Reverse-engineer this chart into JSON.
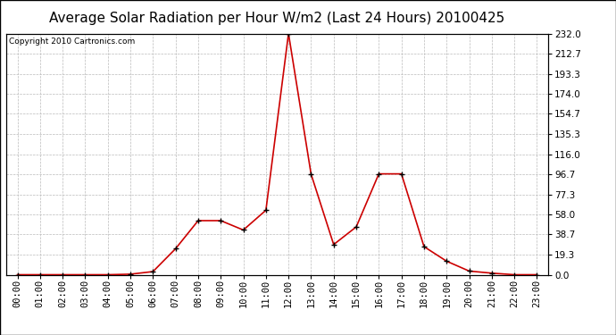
{
  "title": "Average Solar Radiation per Hour W/m2 (Last 24 Hours) 20100425",
  "copyright": "Copyright 2010 Cartronics.com",
  "hours": [
    "00:00",
    "01:00",
    "02:00",
    "03:00",
    "04:00",
    "05:00",
    "06:00",
    "07:00",
    "08:00",
    "09:00",
    "10:00",
    "11:00",
    "12:00",
    "13:00",
    "14:00",
    "15:00",
    "16:00",
    "17:00",
    "18:00",
    "19:00",
    "20:00",
    "21:00",
    "22:00",
    "23:00"
  ],
  "values": [
    0.0,
    0.0,
    0.0,
    0.0,
    0.0,
    0.5,
    3.0,
    25.0,
    52.0,
    52.0,
    43.0,
    62.0,
    232.0,
    96.7,
    29.0,
    46.0,
    97.0,
    97.0,
    27.0,
    13.0,
    3.5,
    1.5,
    0.0,
    0.0
  ],
  "line_color": "#cc0000",
  "marker_color": "#000000",
  "bg_color": "#ffffff",
  "plot_bg_color": "#ffffff",
  "grid_color": "#bbbbbb",
  "border_color": "#000000",
  "title_fontsize": 11,
  "copyright_fontsize": 6.5,
  "tick_fontsize": 7.5,
  "ymin": 0.0,
  "ymax": 232.0,
  "yticks": [
    0.0,
    19.3,
    38.7,
    58.0,
    77.3,
    96.7,
    116.0,
    135.3,
    154.7,
    174.0,
    193.3,
    212.7,
    232.0
  ]
}
